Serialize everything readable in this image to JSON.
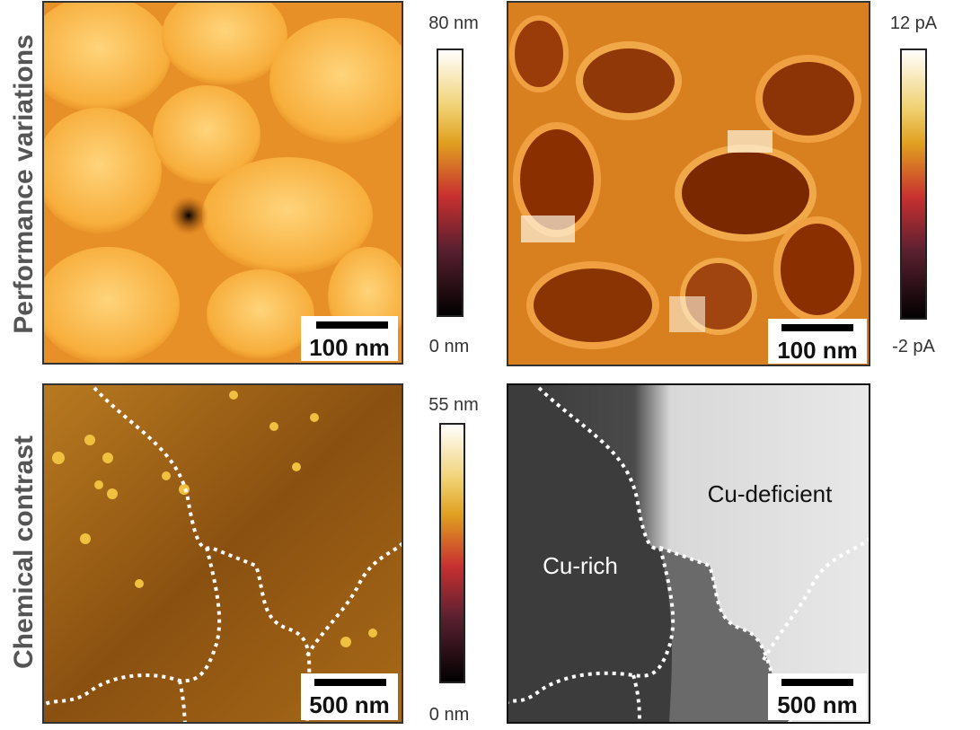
{
  "row_labels": [
    "Performance variations",
    "Chemical contrast"
  ],
  "colorbars": [
    {
      "max": "80 nm",
      "min": "0 nm"
    },
    {
      "max": "12 pA",
      "min": "-2 pA"
    },
    {
      "max": "55 nm",
      "min": "0 nm"
    }
  ],
  "scale_bars": [
    "100 nm",
    "100 nm",
    "500 nm",
    "500 nm"
  ],
  "annotations": [
    "Cu-deficient",
    "Cu-rich"
  ]
}
